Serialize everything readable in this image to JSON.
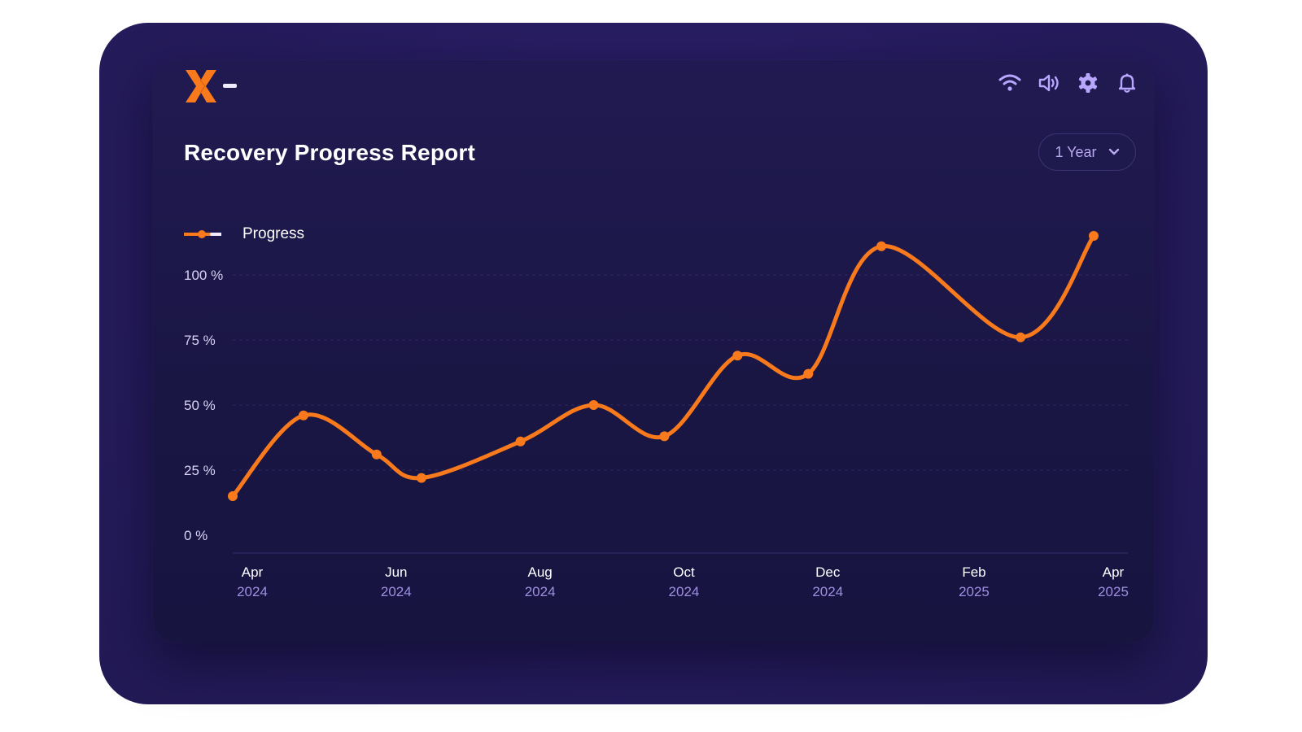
{
  "header": {
    "title": "Recovery Progress Report",
    "range_value": "1 Year",
    "icons": [
      "wifi-icon",
      "speaker-icon",
      "gear-icon",
      "bell-icon"
    ]
  },
  "colors": {
    "accent": "#f97a1c",
    "background": "#1a1644",
    "frame": "#251b5c",
    "icon": "#b9a6ff",
    "gridline": "#2d2760"
  },
  "chart_data": {
    "type": "line",
    "legend": "Progress",
    "grid": true,
    "legend_placement": "top-left",
    "y_ticks": [
      "0 %",
      "25 %",
      "50 %",
      "75 %",
      "100 %"
    ],
    "ylim": [
      0,
      100
    ],
    "x_ticks": [
      {
        "month": "Apr",
        "year": "2024",
        "x": "2024-04"
      },
      {
        "month": "Jun",
        "year": "2024",
        "x": "2024-06"
      },
      {
        "month": "Aug",
        "year": "2024",
        "x": "2024-08"
      },
      {
        "month": "Oct",
        "year": "2024",
        "x": "2024-10"
      },
      {
        "month": "Dec",
        "year": "2024",
        "x": "2024-12"
      },
      {
        "month": "Feb",
        "year": "2025",
        "x": "2025-02"
      },
      {
        "month": "Apr",
        "year": "2025",
        "x": "2025-04"
      }
    ],
    "series": [
      {
        "name": "Progress",
        "points": [
          {
            "x": "2024-04",
            "y": 15
          },
          {
            "x": "2024-05",
            "y": 46
          },
          {
            "x": "2024-06",
            "y": 31
          },
          {
            "x": "2024-06-20",
            "y": 22
          },
          {
            "x": "2024-08",
            "y": 36
          },
          {
            "x": "2024-09",
            "y": 50
          },
          {
            "x": "2024-10",
            "y": 38
          },
          {
            "x": "2024-11",
            "y": 69
          },
          {
            "x": "2024-12",
            "y": 62
          },
          {
            "x": "2025-01",
            "y": 111
          },
          {
            "x": "2025-03",
            "y": 76
          },
          {
            "x": "2025-04",
            "y": 115
          }
        ]
      }
    ]
  }
}
